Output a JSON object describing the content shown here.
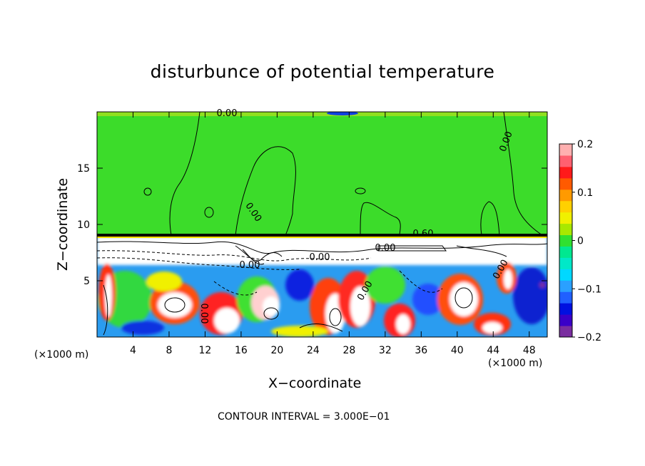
{
  "title": "disturbunce of potential temperature",
  "xlabel": "X−coordinate",
  "ylabel": "Z−coordinate",
  "x_unit_left": "(×1000 m)",
  "x_unit_right": "(×1000 m)",
  "contour_interval": "CONTOUR INTERVAL = 3.000E−01",
  "chart_data": {
    "type": "heatmap",
    "title": "disturbunce of potential temperature",
    "xlabel": "X−coordinate",
    "ylabel": "Z−coordinate",
    "x_unit": "(×1000 m)",
    "xlim": [
      0,
      50
    ],
    "ylim": [
      0,
      20
    ],
    "x_ticks": [
      4,
      8,
      12,
      16,
      20,
      24,
      28,
      32,
      36,
      40,
      44,
      48
    ],
    "x_tick_labels": [
      "4",
      "8",
      "12",
      "16",
      "20",
      "24",
      "28",
      "32",
      "36",
      "40",
      "44",
      "48"
    ],
    "y_ticks": [
      5,
      10,
      15
    ],
    "y_tick_labels": [
      "5",
      "10",
      "15"
    ],
    "colorbar": {
      "range": [
        -0.2,
        0.2
      ],
      "ticks": [
        0.2,
        0.1,
        0,
        -0.1,
        -0.2
      ],
      "tick_labels": [
        "0.2",
        "0.1",
        "0",
        "−0.1",
        "−0.2"
      ],
      "colors": [
        "#7a2ea0",
        "#3a00c8",
        "#0010e0",
        "#2060ff",
        "#2aa0ff",
        "#00d8ff",
        "#00e8c8",
        "#00e890",
        "#30e030",
        "#a8e800",
        "#f0f000",
        "#ffd000",
        "#ff9a00",
        "#ff5a00",
        "#ff1a1a",
        "#ff6070",
        "#ffb0b0"
      ]
    },
    "contour_interval": 0.3,
    "contour_labels": [
      "0.00",
      "0.00",
      "0.00",
      "0.00",
      "0.60",
      "0.00",
      "0.00",
      "0.00",
      "0.00",
      "0.00"
    ],
    "background_value_upper": 0.0,
    "inversion_height": 9.2,
    "grid": false
  }
}
